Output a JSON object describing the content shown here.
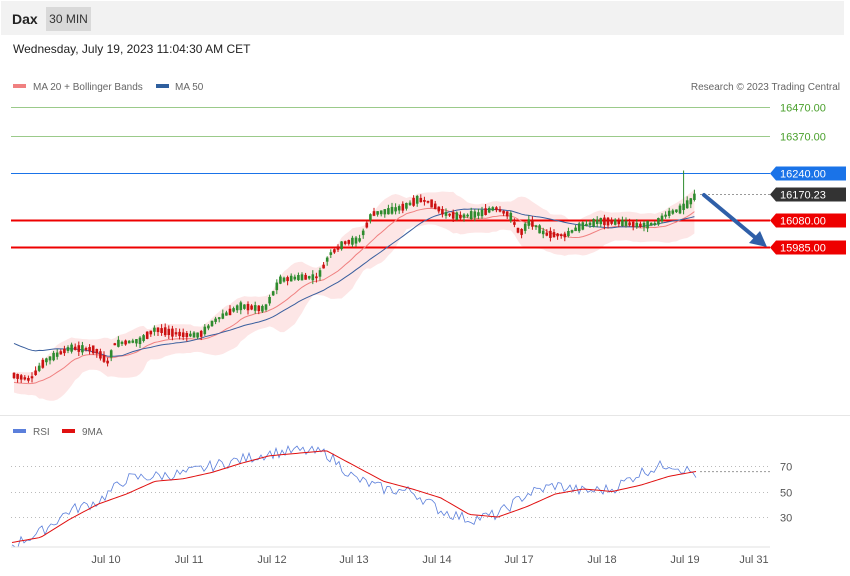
{
  "header": {
    "title": "Dax",
    "timeframe": "30 MIN",
    "datetime": "Wednesday, July 19, 2023 11:04:30 AM CET"
  },
  "legend": {
    "ma20": "MA 20 + Bollinger Bands",
    "ma50": "MA 50",
    "credit": "Research © 2023 Trading Central"
  },
  "levels": [
    {
      "value": 16470,
      "label": "16470.00",
      "color": "#4aa02c",
      "style": "line"
    },
    {
      "value": 16370,
      "label": "16370.00",
      "color": "#4aa02c",
      "style": "line"
    },
    {
      "value": 16240,
      "label": "16240.00",
      "color": "#1a73e8",
      "style": "badge"
    },
    {
      "value": 16170.23,
      "label": "16170.23",
      "color": "#333333",
      "style": "badge"
    },
    {
      "value": 16080,
      "label": "16080.00",
      "color": "#ee0000",
      "style": "badge"
    },
    {
      "value": 15985,
      "label": "15985.00",
      "color": "#ee0000",
      "style": "badge"
    }
  ],
  "xaxis": {
    "labels": [
      "Jul 10",
      "Jul 11",
      "Jul 12",
      "Jul 13",
      "Jul 14",
      "Jul 17",
      "Jul 18",
      "Jul 19",
      "Jul 31"
    ]
  },
  "rsi": {
    "legend_rsi": "RSI",
    "legend_ma": "9MA",
    "ticks": [
      "70",
      "50",
      "30"
    ],
    "rsi_color": "#5b7fdb",
    "ma_color": "#e01010"
  },
  "colors": {
    "bull": "#2e8b2e",
    "bear": "#cc1111",
    "ma20": "#f08080",
    "ma50": "#3a5f9e",
    "band_fill": "#fde3e3",
    "arrow": "#2f5fa8"
  },
  "chart_data": [
    {
      "type": "candlestick",
      "title": "Dax",
      "timeframe": "30 MIN",
      "x_labels": [
        "Jul 10",
        "Jul 11",
        "Jul 12",
        "Jul 13",
        "Jul 14",
        "Jul 17",
        "Jul 18",
        "Jul 19",
        "Jul 31"
      ],
      "current_price": 16170.23,
      "levels": [
        16470,
        16370,
        16240,
        16170.23,
        16080,
        15985
      ],
      "series": [
        {
          "name": "MA 20 + Bollinger Bands",
          "values": [
            15560,
            15640,
            15700,
            15780,
            15850,
            15880,
            15920,
            16000,
            16080,
            16060,
            16075,
            16080
          ]
        },
        {
          "name": "MA 50",
          "values": [
            15720,
            15620,
            15590,
            15640,
            15750,
            15870,
            15990,
            16060,
            16085,
            16090,
            16080,
            16075
          ]
        }
      ]
    },
    {
      "type": "line",
      "ticks": [
        70,
        50,
        30
      ],
      "series": [
        {
          "name": "RSI",
          "values": [
            8,
            18,
            35,
            42,
            60,
            62,
            64,
            70,
            75,
            80,
            82,
            80,
            60,
            52,
            50,
            35,
            28,
            32,
            48,
            55,
            50,
            52,
            65,
            72,
            63
          ]
        },
        {
          "name": "9MA",
          "values": [
            10,
            14,
            28,
            40,
            48,
            58,
            60,
            65,
            72,
            78,
            80,
            82,
            70,
            58,
            52,
            45,
            32,
            30,
            38,
            48,
            52,
            50,
            55,
            62,
            66
          ]
        }
      ]
    }
  ]
}
